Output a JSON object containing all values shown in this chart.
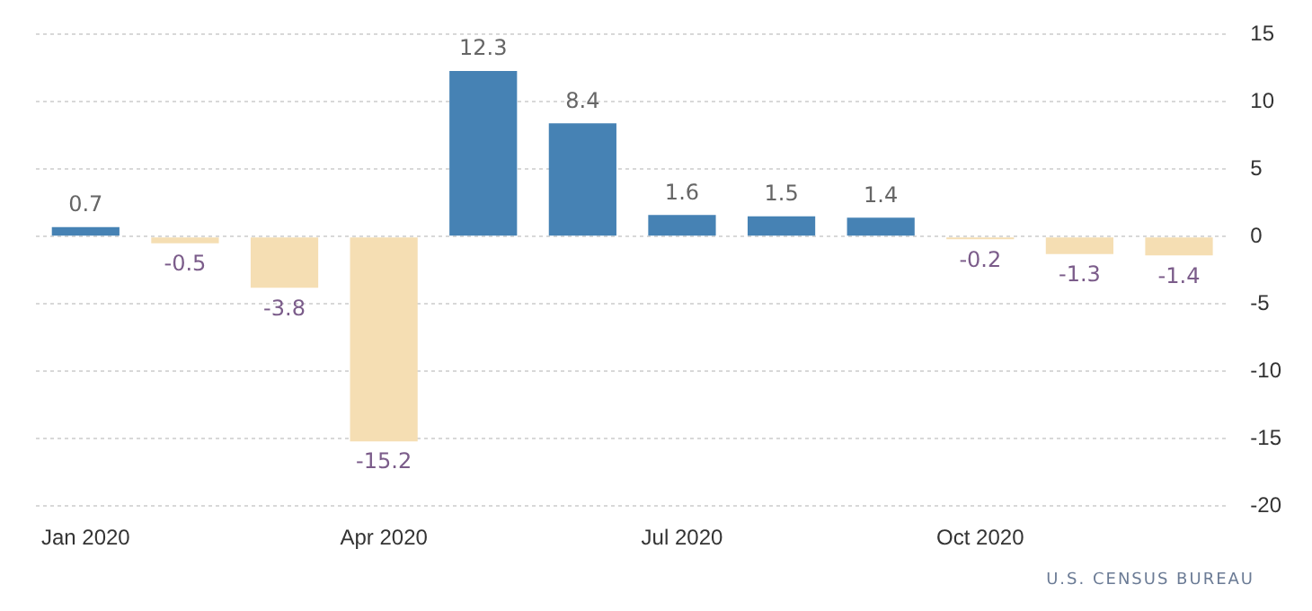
{
  "chart_data": {
    "type": "bar",
    "categories": [
      "Jan 2020",
      null,
      null,
      "Apr 2020",
      null,
      null,
      "Jul 2020",
      null,
      null,
      "Oct 2020",
      null,
      null
    ],
    "values": [
      0.7,
      -0.5,
      -3.8,
      -15.2,
      12.3,
      8.4,
      1.6,
      1.5,
      1.4,
      -0.2,
      -1.3,
      -1.4
    ],
    "colors": [
      "#4682b4",
      "#f5deb3",
      "#f5deb3",
      "#f5deb3",
      "#4682b4",
      "#4682b4",
      "#4682b4",
      "#4682b4",
      "#4682b4",
      "#f5deb3",
      "#f5deb3",
      "#f5deb3"
    ],
    "ylim": [
      -20,
      15
    ],
    "yticks": [
      -20,
      -15,
      -10,
      -5,
      0,
      5,
      10,
      15
    ],
    "grid": "y",
    "data_labels": true,
    "legend": false,
    "annotations": [
      "U.S. CENSUS BUREAU"
    ]
  }
}
